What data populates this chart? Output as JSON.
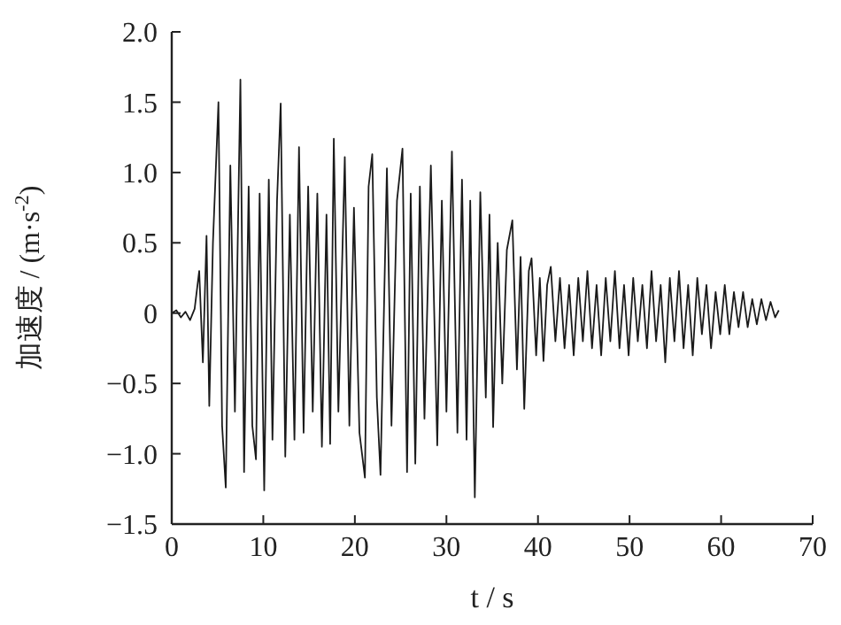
{
  "chart_data": {
    "type": "line",
    "xlabel": "t / s",
    "ylabel": "加速度 / (m·s$^{-2}$)",
    "xlim": [
      0,
      70
    ],
    "xticks": [
      0,
      10,
      20,
      30,
      40,
      50,
      60,
      70
    ],
    "ylim": [
      -1.5,
      2
    ],
    "yticks": [
      {
        "value": -1.5,
        "label": "−1.5"
      },
      {
        "value": -1,
        "label": "−1.0"
      },
      {
        "value": -0.5,
        "label": "−0.5"
      },
      0,
      {
        "value": 0.5,
        "label": "0.5"
      },
      {
        "value": 1,
        "label": "1.0"
      },
      {
        "value": 1.5,
        "label": "1.5"
      },
      {
        "value": 2,
        "label": "2.0"
      }
    ],
    "grid": false,
    "marker": "none",
    "line_style": "solid",
    "series": [
      {
        "color": "#1a1a1a",
        "x": [
          0,
          0.5,
          1,
          1.5,
          2,
          2.5,
          3,
          3.4,
          3.8,
          4.1,
          4.5,
          5.1,
          5.5,
          5.9,
          6.4,
          6.9,
          7.5,
          7.9,
          8.4,
          8.8,
          9.2,
          9.6,
          10.1,
          10.6,
          11,
          11.5,
          11.9,
          12.4,
          12.9,
          13.4,
          13.9,
          14.4,
          14.9,
          15.4,
          15.9,
          16.4,
          16.9,
          17.3,
          17.7,
          18.2,
          18.9,
          19.4,
          19.9,
          20.5,
          21.1,
          21.5,
          21.9,
          22.4,
          22.8,
          23.5,
          24,
          24.6,
          25.2,
          25.7,
          26.1,
          26.6,
          27.1,
          27.6,
          28.3,
          29,
          29.5,
          30,
          30.6,
          31.2,
          31.7,
          32.2,
          32.6,
          33.1,
          33.7,
          34.3,
          34.7,
          35.1,
          35.6,
          36.1,
          36.6,
          37.2,
          37.7,
          38.1,
          38.5,
          39,
          39.3,
          39.8,
          40.2,
          40.6,
          41,
          41.4,
          41.9,
          42.4,
          42.9,
          43.4,
          43.9,
          44.4,
          44.9,
          45.4,
          45.9,
          46.4,
          46.9,
          47.4,
          47.9,
          48.4,
          48.9,
          49.4,
          49.9,
          50.4,
          50.9,
          51.4,
          51.9,
          52.4,
          52.9,
          53.4,
          53.9,
          54.4,
          54.9,
          55.4,
          55.9,
          56.4,
          56.9,
          57.4,
          57.9,
          58.4,
          58.9,
          59.4,
          59.9,
          60.4,
          60.9,
          61.4,
          61.9,
          62.4,
          62.9,
          63.4,
          63.9,
          64.4,
          64.9,
          65.4,
          65.9,
          66.3
        ],
        "values": [
          0,
          0.02,
          -0.03,
          0.01,
          -0.05,
          0.03,
          0.3,
          -0.35,
          0.55,
          -0.66,
          0.5,
          1.5,
          -0.8,
          -1.24,
          1.05,
          -0.7,
          1.66,
          -1.13,
          0.9,
          -0.8,
          -1.04,
          0.85,
          -1.26,
          0.95,
          -0.9,
          0.8,
          1.49,
          -1.02,
          0.7,
          -0.9,
          1.18,
          -0.85,
          0.9,
          -0.7,
          0.85,
          -0.95,
          0.7,
          -0.93,
          1.24,
          -0.7,
          1.11,
          -0.8,
          0.75,
          -0.85,
          -1.17,
          0.9,
          1.13,
          -0.6,
          -1.15,
          1.03,
          -0.8,
          0.8,
          1.17,
          -1.13,
          0.85,
          -1.07,
          0.9,
          -0.75,
          1.05,
          -0.94,
          0.8,
          -0.7,
          1.15,
          -0.85,
          0.95,
          -0.9,
          0.8,
          -1.31,
          0.86,
          -0.6,
          0.7,
          -0.81,
          0.5,
          -0.5,
          0.45,
          0.66,
          -0.4,
          0.4,
          -0.68,
          0.3,
          0.39,
          -0.3,
          0.25,
          -0.34,
          0.2,
          0.33,
          -0.2,
          0.25,
          -0.25,
          0.2,
          -0.3,
          0.25,
          -0.2,
          0.3,
          -0.25,
          0.2,
          -0.3,
          0.25,
          -0.2,
          0.3,
          -0.25,
          0.2,
          -0.3,
          0.25,
          -0.2,
          0.2,
          -0.25,
          0.3,
          -0.2,
          0.2,
          -0.35,
          0.25,
          -0.2,
          0.3,
          -0.25,
          0.2,
          -0.3,
          0.25,
          -0.15,
          0.2,
          -0.25,
          0.15,
          -0.15,
          0.2,
          -0.15,
          0.15,
          -0.1,
          0.15,
          -0.1,
          0.1,
          -0.08,
          0.1,
          -0.05,
          0.08,
          -0.03,
          0.02
        ]
      }
    ]
  }
}
